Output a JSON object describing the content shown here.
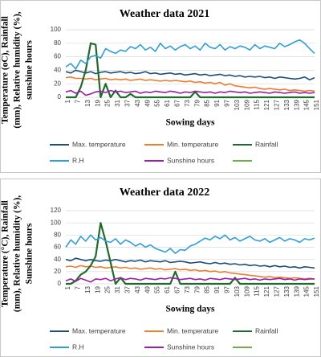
{
  "chart_data": [
    {
      "type": "line",
      "title": "Weather data 2021",
      "y_label": [
        "Temperature (oC), Rainfall",
        "(mm), Relative humidity (%),",
        "sunshine hours"
      ],
      "x_label": "Sowing days",
      "categories": [
        "1",
        null,
        "7",
        null,
        "13",
        null,
        "19",
        null,
        "25",
        null,
        "31",
        null,
        "37",
        null,
        "43",
        null,
        "49",
        null,
        "55",
        null,
        "61",
        null,
        "67",
        null,
        "73",
        null,
        "79",
        null,
        "85",
        null,
        "91",
        null,
        "97",
        null,
        "103",
        null,
        "109",
        null,
        "115",
        null,
        "121",
        null,
        "127",
        null,
        "133",
        null,
        "139",
        null,
        "145",
        null,
        "151"
      ],
      "ylim": [
        0,
        100
      ],
      "yticks": [
        0,
        20,
        40,
        60,
        80,
        100
      ],
      "grid": true,
      "series": [
        {
          "name": "Max. temperature",
          "color": "#1f4e79",
          "values": [
            38,
            36,
            40,
            38,
            36,
            38,
            35,
            37,
            38,
            36,
            37,
            38,
            36,
            37,
            35,
            36,
            38,
            35,
            36,
            34,
            35,
            36,
            34,
            35,
            33,
            34,
            35,
            33,
            34,
            32,
            33,
            34,
            32,
            33,
            31,
            32,
            30,
            31,
            30,
            31,
            29,
            30,
            28,
            30,
            29,
            28,
            27,
            28,
            30,
            26,
            29
          ]
        },
        {
          "name": "Min. temperature",
          "color": "#ed7d31",
          "values": [
            29,
            30,
            28,
            28,
            27,
            28,
            26,
            27,
            28,
            26,
            27,
            26,
            27,
            25,
            26,
            27,
            25,
            26,
            25,
            24,
            25,
            24,
            25,
            24,
            23,
            24,
            22,
            23,
            21,
            22,
            20,
            22,
            18,
            20,
            17,
            16,
            15,
            14,
            15,
            13,
            12,
            13,
            12,
            11,
            12,
            10,
            11,
            10,
            9,
            10,
            9
          ]
        },
        {
          "name": "Rainfall",
          "color": "#1e6b2a",
          "values": [
            0,
            0,
            0,
            15,
            40,
            80,
            78,
            0,
            20,
            0,
            10,
            0,
            0,
            5,
            0,
            0,
            0,
            0,
            0,
            0,
            0,
            0,
            0,
            0,
            0,
            0,
            8,
            0,
            0,
            0,
            0,
            0,
            0,
            0,
            0,
            0,
            0,
            0,
            0,
            0,
            0,
            0,
            0,
            0,
            0,
            0,
            0,
            0,
            0,
            0,
            0
          ]
        },
        {
          "name": "R.H",
          "color": "#2e9fd8",
          "values": [
            45,
            50,
            42,
            55,
            50,
            60,
            62,
            58,
            72,
            68,
            65,
            70,
            68,
            75,
            72,
            78,
            70,
            74,
            68,
            80,
            72,
            76,
            70,
            75,
            78,
            72,
            76,
            70,
            80,
            74,
            72,
            78,
            70,
            75,
            72,
            76,
            74,
            70,
            78,
            72,
            76,
            74,
            72,
            80,
            75,
            78,
            82,
            85,
            80,
            72,
            65
          ]
        },
        {
          "name": "Sunshine hours",
          "color": "#9b1fa8",
          "values": [
            8,
            10,
            6,
            9,
            3,
            5,
            8,
            9,
            7,
            10,
            8,
            9,
            7,
            8,
            9,
            6,
            8,
            7,
            9,
            8,
            7,
            9,
            8,
            6,
            8,
            7,
            9,
            8,
            7,
            8,
            6,
            8,
            7,
            9,
            8,
            7,
            8,
            6,
            7,
            8,
            7,
            6,
            8,
            7,
            6,
            7,
            8,
            6,
            7,
            6,
            7
          ]
        }
      ]
    },
    {
      "type": "line",
      "title": "Weather data 2022",
      "y_label": [
        "Temperature (°C), Rainfall",
        "(mm), Relative humidity (%),",
        "Sunshine hours"
      ],
      "x_label": "Sowing days",
      "categories": [
        "1",
        null,
        "7",
        null,
        "13",
        null,
        "19",
        null,
        "25",
        null,
        "31",
        null,
        "37",
        null,
        "43",
        null,
        "49",
        null,
        "55",
        null,
        "61",
        null,
        "67",
        null,
        "73",
        null,
        "79",
        null,
        "85",
        null,
        "91",
        null,
        "97",
        null,
        "103",
        null,
        "109",
        null,
        "115",
        null,
        "121",
        null,
        "127",
        null,
        "133",
        null,
        "139",
        null,
        "145",
        null,
        "151"
      ],
      "ylim": [
        0,
        120
      ],
      "yticks": [
        0,
        20,
        40,
        60,
        80,
        100,
        120
      ],
      "grid": true,
      "series": [
        {
          "name": "Max. temperature",
          "color": "#1f4e79",
          "values": [
            40,
            38,
            42,
            40,
            38,
            40,
            38,
            37,
            39,
            38,
            40,
            38,
            36,
            38,
            37,
            39,
            36,
            38,
            37,
            36,
            38,
            35,
            36,
            37,
            36,
            34,
            35,
            36,
            34,
            33,
            35,
            33,
            34,
            32,
            33,
            31,
            32,
            30,
            31,
            29,
            30,
            28,
            30,
            28,
            29,
            27,
            28,
            26,
            28,
            27,
            26
          ]
        },
        {
          "name": "Min. temperature",
          "color": "#ed7d31",
          "values": [
            28,
            29,
            27,
            30,
            28,
            29,
            27,
            28,
            26,
            27,
            28,
            26,
            27,
            25,
            26,
            24,
            25,
            26,
            24,
            25,
            23,
            24,
            25,
            23,
            24,
            22,
            23,
            21,
            22,
            20,
            21,
            19,
            20,
            18,
            17,
            16,
            15,
            14,
            13,
            12,
            11,
            12,
            10,
            11,
            10,
            9,
            10,
            9,
            8,
            9,
            8
          ]
        },
        {
          "name": "Rainfall",
          "color": "#1e6b2a",
          "values": [
            0,
            0,
            5,
            15,
            20,
            30,
            45,
            100,
            70,
            35,
            0,
            10,
            0,
            0,
            0,
            0,
            0,
            0,
            0,
            0,
            0,
            0,
            20,
            0,
            0,
            0,
            0,
            0,
            0,
            0,
            0,
            0,
            0,
            0,
            10,
            0,
            0,
            0,
            0,
            0,
            0,
            0,
            0,
            0,
            0,
            0,
            0,
            0,
            0,
            0,
            0
          ]
        },
        {
          "name": "R.H",
          "color": "#2e9fd8",
          "values": [
            60,
            72,
            65,
            78,
            70,
            80,
            72,
            76,
            70,
            68,
            74,
            65,
            72,
            68,
            62,
            66,
            60,
            64,
            58,
            55,
            52,
            58,
            50,
            56,
            55,
            62,
            65,
            70,
            75,
            72,
            78,
            74,
            80,
            72,
            76,
            70,
            74,
            78,
            72,
            70,
            74,
            68,
            72,
            76,
            70,
            74,
            72,
            68,
            74,
            72,
            75
          ]
        },
        {
          "name": "Sunshine hours",
          "color": "#9b1fa8",
          "values": [
            5,
            8,
            4,
            9,
            6,
            3,
            8,
            7,
            9,
            5,
            8,
            10,
            7,
            9,
            8,
            6,
            9,
            8,
            7,
            9,
            8,
            10,
            9,
            7,
            8,
            9,
            7,
            8,
            6,
            9,
            8,
            7,
            9,
            8,
            7,
            8,
            9,
            7,
            8,
            6,
            8,
            7,
            8,
            9,
            7,
            8,
            6,
            8,
            7,
            8,
            8
          ]
        }
      ]
    }
  ]
}
